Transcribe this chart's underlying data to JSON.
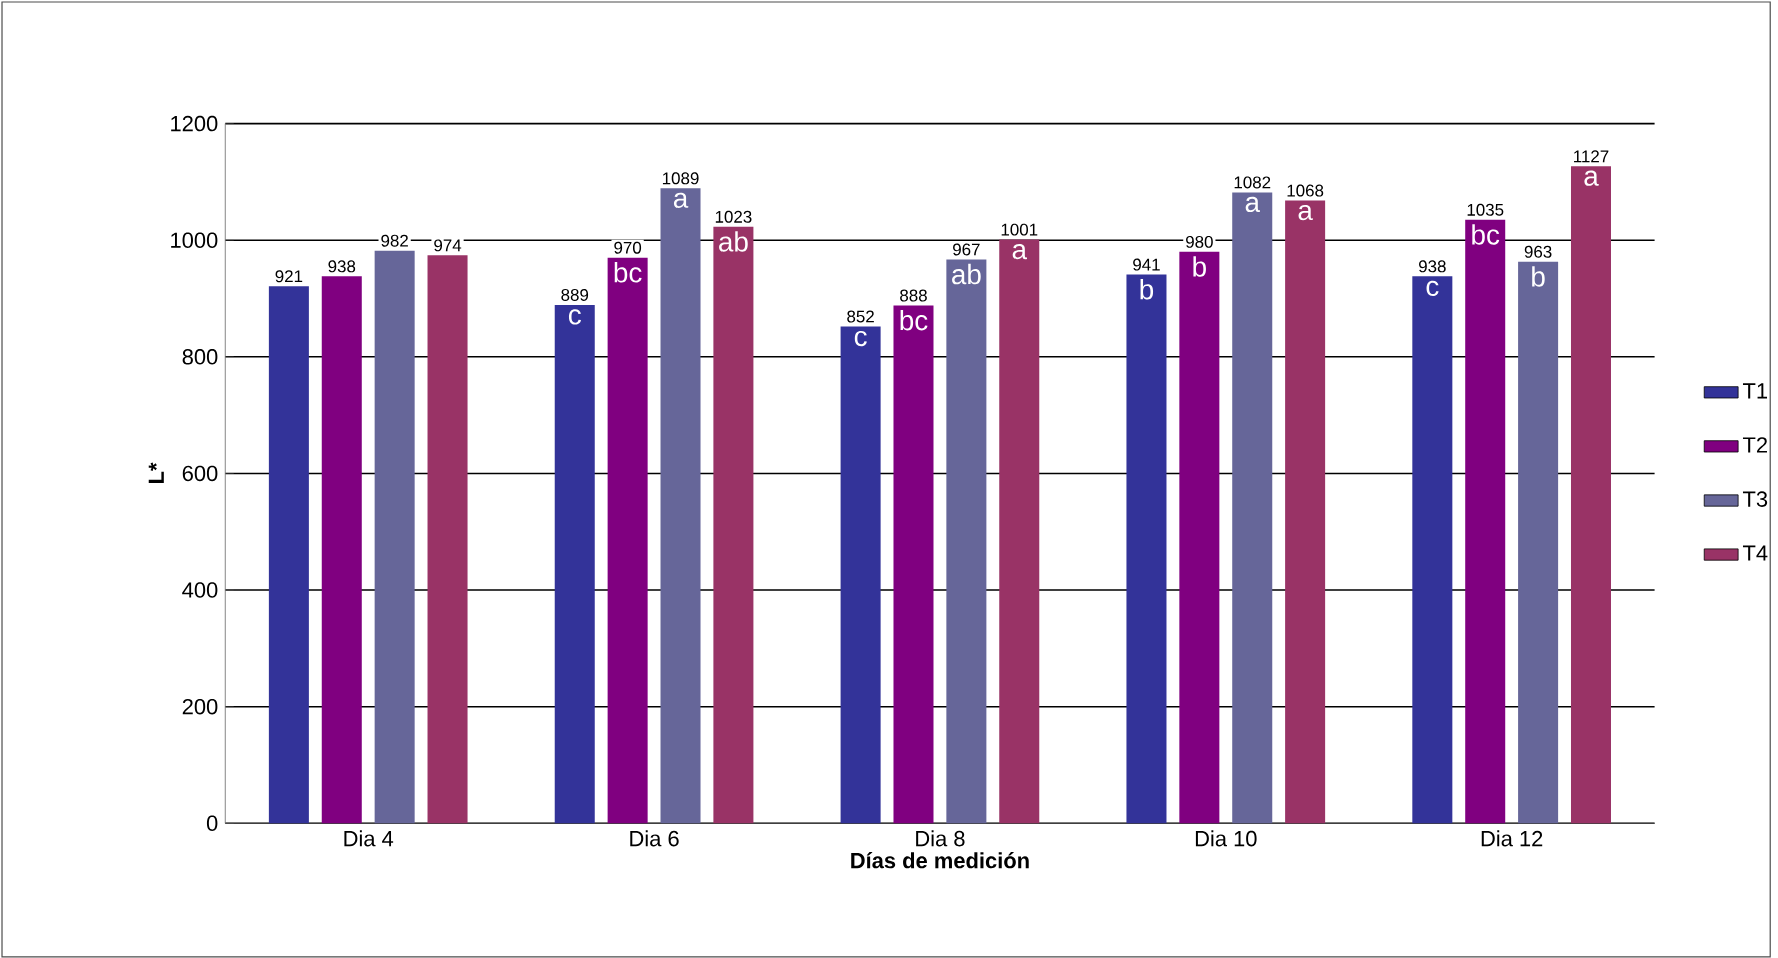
{
  "chart_data": {
    "type": "bar",
    "xlabel": "Días de medición",
    "ylabel": "L*",
    "categories": [
      "Dia 4",
      "Dia 6",
      "Dia 8",
      "Dia 10",
      "Dia 12"
    ],
    "series": [
      {
        "name": "T1",
        "color": "#333399",
        "values": [
          921,
          889,
          852,
          941,
          938
        ]
      },
      {
        "name": "T2",
        "color": "#800080",
        "values": [
          938,
          970,
          888,
          980,
          1035
        ]
      },
      {
        "name": "T3",
        "color": "#666699",
        "values": [
          982,
          1089,
          967,
          1082,
          963
        ]
      },
      {
        "name": "T4",
        "color": "#993366",
        "values": [
          974,
          1023,
          1001,
          1068,
          1127
        ]
      }
    ],
    "ylim": [
      0,
      1200
    ],
    "yticks": [
      0,
      200,
      400,
      600,
      800,
      1000,
      1200
    ],
    "grid": "y",
    "legend": "right",
    "data_labels": true,
    "annotations": [
      "c",
      "bc",
      "a",
      "ab",
      "c",
      "bc",
      "ab",
      "a",
      "b",
      "b",
      "a",
      "a",
      "c",
      "bc",
      "b",
      "a"
    ]
  }
}
